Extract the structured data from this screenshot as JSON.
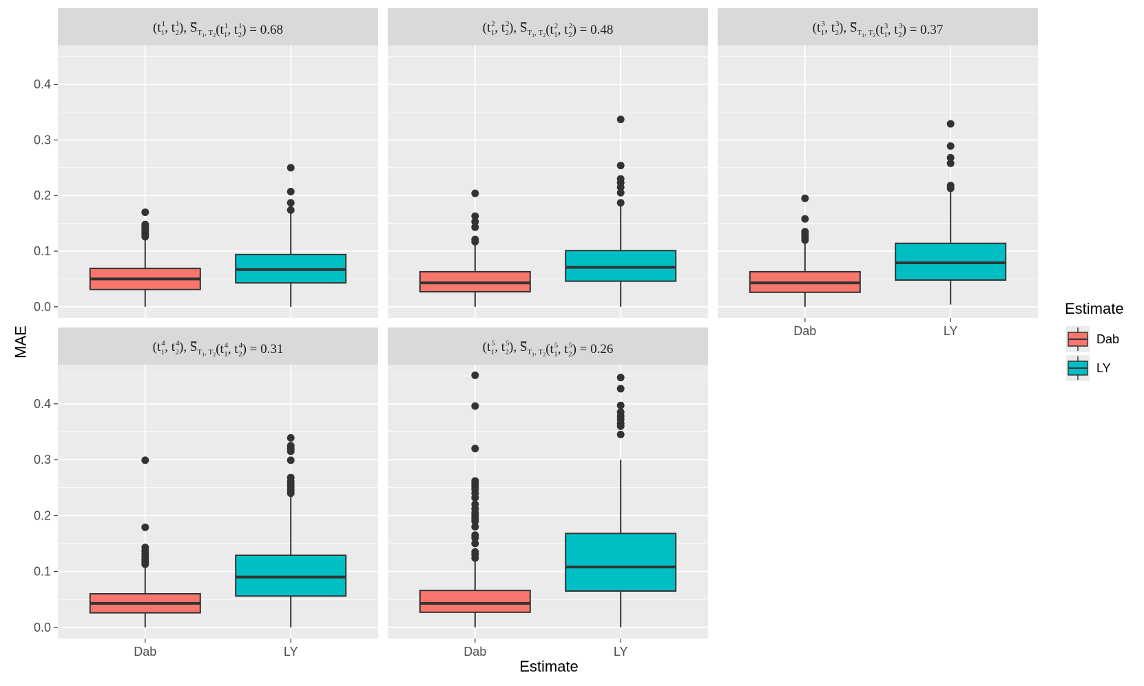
{
  "chart_data": {
    "type": "boxplot",
    "xlabel": "Estimate",
    "ylabel": "MAE",
    "ylim": [
      -0.02,
      0.47
    ],
    "y_ticks": [
      "0.0",
      "0.1",
      "0.2",
      "0.3",
      "0.4"
    ],
    "y_tick_values": [
      0.0,
      0.1,
      0.2,
      0.3,
      0.4
    ],
    "categories": [
      "Dab",
      "LY"
    ],
    "colors": {
      "Dab": "#F8766D",
      "LY": "#00BFC4"
    },
    "legend": {
      "title": "Estimate",
      "placement": "right",
      "entries": [
        {
          "label": "Dab",
          "color": "#F8766D"
        },
        {
          "label": "LY",
          "color": "#00BFC4"
        }
      ]
    },
    "panels": [
      {
        "k": "1",
        "s_value": "0.68",
        "boxes": [
          {
            "category": "Dab",
            "lower_whisker": 0.0,
            "q1": 0.031,
            "median": 0.05,
            "q3": 0.069,
            "upper_whisker": 0.124,
            "outliers": [
              0.126,
              0.13,
              0.133,
              0.136,
              0.14,
              0.144,
              0.148,
              0.17
            ]
          },
          {
            "category": "LY",
            "lower_whisker": 0.0,
            "q1": 0.043,
            "median": 0.067,
            "q3": 0.094,
            "upper_whisker": 0.17,
            "outliers": [
              0.174,
              0.187,
              0.207,
              0.25
            ]
          }
        ]
      },
      {
        "k": "2",
        "s_value": "0.48",
        "boxes": [
          {
            "category": "Dab",
            "lower_whisker": 0.0,
            "q1": 0.027,
            "median": 0.043,
            "q3": 0.063,
            "upper_whisker": 0.113,
            "outliers": [
              0.117,
              0.121,
              0.143,
              0.153,
              0.163,
              0.204
            ]
          },
          {
            "category": "LY",
            "lower_whisker": 0.0,
            "q1": 0.046,
            "median": 0.071,
            "q3": 0.101,
            "upper_whisker": 0.183,
            "outliers": [
              0.187,
              0.205,
              0.215,
              0.223,
              0.23,
              0.254,
              0.337
            ]
          }
        ]
      },
      {
        "k": "3",
        "s_value": "0.37",
        "boxes": [
          {
            "category": "Dab",
            "lower_whisker": 0.0,
            "q1": 0.026,
            "median": 0.043,
            "q3": 0.063,
            "upper_whisker": 0.117,
            "outliers": [
              0.12,
              0.126,
              0.13,
              0.135,
              0.158,
              0.195
            ]
          },
          {
            "category": "LY",
            "lower_whisker": 0.004,
            "q1": 0.048,
            "median": 0.079,
            "q3": 0.114,
            "upper_whisker": 0.21,
            "outliers": [
              0.213,
              0.218,
              0.258,
              0.268,
              0.289,
              0.329
            ]
          }
        ]
      },
      {
        "k": "4",
        "s_value": "0.31",
        "boxes": [
          {
            "category": "Dab",
            "lower_whisker": 0.0,
            "q1": 0.026,
            "median": 0.043,
            "q3": 0.06,
            "upper_whisker": 0.11,
            "outliers": [
              0.113,
              0.117,
              0.121,
              0.126,
              0.131,
              0.137,
              0.143,
              0.179,
              0.299
            ]
          },
          {
            "category": "LY",
            "lower_whisker": 0.0,
            "q1": 0.056,
            "median": 0.09,
            "q3": 0.129,
            "upper_whisker": 0.237,
            "outliers": [
              0.24,
              0.245,
              0.25,
              0.256,
              0.261,
              0.268,
              0.299,
              0.315,
              0.32,
              0.325,
              0.339
            ]
          }
        ]
      },
      {
        "k": "5",
        "s_value": "0.26",
        "boxes": [
          {
            "category": "Dab",
            "lower_whisker": 0.0,
            "q1": 0.027,
            "median": 0.043,
            "q3": 0.066,
            "upper_whisker": 0.12,
            "outliers": [
              0.124,
              0.13,
              0.135,
              0.15,
              0.16,
              0.165,
              0.18,
              0.19,
              0.195,
              0.2,
              0.205,
              0.212,
              0.22,
              0.232,
              0.24,
              0.247,
              0.252,
              0.257,
              0.262,
              0.32,
              0.396,
              0.451
            ]
          },
          {
            "category": "LY",
            "lower_whisker": 0.0,
            "q1": 0.065,
            "median": 0.108,
            "q3": 0.168,
            "upper_whisker": 0.3,
            "outliers": [
              0.345,
              0.36,
              0.365,
              0.372,
              0.378,
              0.385,
              0.397,
              0.427,
              0.447
            ]
          }
        ]
      }
    ]
  }
}
